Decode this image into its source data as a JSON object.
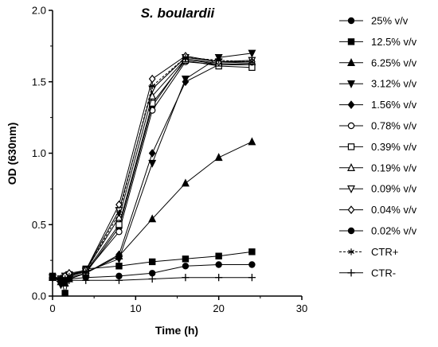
{
  "chart_data": {
    "type": "line",
    "title": "S. boulardii",
    "xlabel": "Time (h)",
    "ylabel": "OD (630nm)",
    "xlim": [
      0,
      30
    ],
    "ylim": [
      0,
      2.0
    ],
    "xticks": [
      "0",
      "10",
      "20",
      "30"
    ],
    "yticks": [
      "0.0",
      "0.5",
      "1.0",
      "1.5",
      "2.0"
    ],
    "x": [
      0,
      1,
      1.5,
      2,
      4,
      8,
      12,
      16,
      20,
      24
    ],
    "legend_position": "right",
    "series": [
      {
        "name": "25% v/v",
        "marker": "circle-filled",
        "values": [
          0.13,
          0.12,
          0.11,
          0.12,
          0.16,
          0.48,
          1.33,
          1.66,
          1.62,
          1.62
        ]
      },
      {
        "name": "12.5% v/v",
        "marker": "square-filled",
        "values": [
          0.14,
          0.12,
          0.02,
          0.13,
          0.19,
          0.21,
          0.24,
          0.26,
          0.28,
          0.31
        ]
      },
      {
        "name": "6.25% v/v",
        "marker": "triangle-up-filled",
        "values": [
          0.14,
          0.1,
          0.09,
          0.12,
          0.16,
          0.28,
          0.54,
          0.79,
          0.97,
          1.08
        ]
      },
      {
        "name": "3.12% v/v",
        "marker": "triangle-down-filled",
        "values": [
          0.13,
          0.08,
          0.1,
          0.14,
          0.17,
          0.26,
          0.93,
          1.52,
          1.67,
          1.7
        ]
      },
      {
        "name": "1.56% v/v",
        "marker": "diamond-filled",
        "values": [
          0.13,
          0.1,
          0.12,
          0.13,
          0.16,
          0.29,
          1.0,
          1.5,
          1.62,
          1.63
        ]
      },
      {
        "name": "0.78% v/v",
        "marker": "circle-open",
        "values": [
          0.13,
          0.12,
          0.13,
          0.15,
          0.17,
          0.45,
          1.3,
          1.64,
          1.62,
          1.62
        ]
      },
      {
        "name": "0.39% v/v",
        "marker": "square-open",
        "values": [
          0.13,
          0.12,
          0.13,
          0.15,
          0.17,
          0.5,
          1.35,
          1.65,
          1.61,
          1.6
        ]
      },
      {
        "name": "0.19% v/v",
        "marker": "triangle-up-open",
        "values": [
          0.13,
          0.12,
          0.13,
          0.15,
          0.18,
          0.55,
          1.4,
          1.66,
          1.63,
          1.64
        ]
      },
      {
        "name": "0.09% v/v",
        "marker": "triangle-down-open",
        "values": [
          0.13,
          0.12,
          0.14,
          0.15,
          0.18,
          0.6,
          1.45,
          1.67,
          1.64,
          1.65
        ]
      },
      {
        "name": "0.04% v/v",
        "marker": "diamond-open",
        "values": [
          0.13,
          0.12,
          0.14,
          0.16,
          0.18,
          0.64,
          1.52,
          1.68,
          1.64,
          1.64
        ]
      },
      {
        "name": "0.02% v/v",
        "marker": "circle-filled",
        "values": [
          0.13,
          0.11,
          0.11,
          0.12,
          0.13,
          0.14,
          0.16,
          0.21,
          0.22,
          0.22
        ]
      },
      {
        "name": "CTR+",
        "marker": "star",
        "dashed": true,
        "values": [
          0.13,
          0.12,
          0.12,
          0.14,
          0.17,
          0.58,
          1.47,
          1.67,
          1.65,
          1.64
        ]
      },
      {
        "name": "CTR-",
        "marker": "plus",
        "values": [
          0.13,
          0.12,
          0.12,
          0.11,
          0.11,
          0.11,
          0.12,
          0.13,
          0.13,
          0.13
        ]
      }
    ]
  }
}
